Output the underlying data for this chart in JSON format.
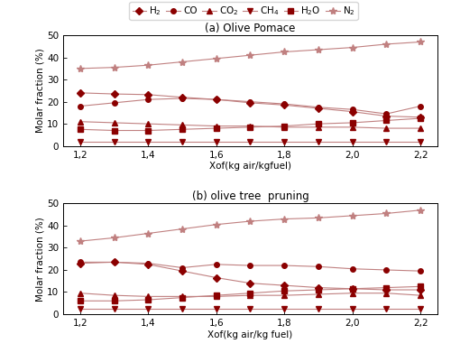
{
  "x": [
    1.2,
    1.3,
    1.4,
    1.5,
    1.6,
    1.7,
    1.8,
    1.9,
    2.0,
    2.1,
    2.2
  ],
  "panel_a": {
    "title": "(a) Olive Pomace",
    "H2": [
      24.0,
      23.5,
      23.2,
      22.0,
      21.0,
      19.5,
      18.5,
      17.0,
      15.5,
      13.5,
      13.0
    ],
    "CO": [
      18.0,
      19.5,
      21.0,
      21.5,
      21.0,
      20.0,
      19.0,
      17.5,
      16.5,
      14.5,
      18.0
    ],
    "CO2": [
      11.0,
      10.5,
      10.0,
      9.5,
      9.0,
      9.0,
      8.5,
      8.5,
      8.5,
      8.0,
      8.0
    ],
    "CH4": [
      2.0,
      2.0,
      2.0,
      2.0,
      2.0,
      2.0,
      2.0,
      2.0,
      2.0,
      2.0,
      2.0
    ],
    "H2O": [
      7.5,
      7.0,
      7.0,
      7.5,
      8.0,
      8.5,
      9.0,
      10.0,
      10.5,
      11.5,
      12.5
    ],
    "N2": [
      35.0,
      35.5,
      36.5,
      38.0,
      39.5,
      41.0,
      42.5,
      43.5,
      44.5,
      46.0,
      47.0
    ]
  },
  "panel_b": {
    "title": "(b) olive tree  pruning",
    "H2": [
      23.0,
      23.5,
      22.5,
      19.5,
      16.5,
      14.0,
      13.0,
      12.0,
      11.5,
      11.0,
      11.0
    ],
    "CO": [
      23.5,
      23.5,
      23.0,
      21.0,
      22.5,
      22.0,
      22.0,
      21.5,
      20.5,
      20.0,
      19.5
    ],
    "CO2": [
      9.5,
      8.5,
      8.0,
      8.0,
      8.0,
      8.5,
      8.5,
      9.0,
      9.5,
      9.5,
      8.5
    ],
    "CH4": [
      2.5,
      2.5,
      2.5,
      2.5,
      2.5,
      2.5,
      2.5,
      2.5,
      2.5,
      2.5,
      2.5
    ],
    "H2O": [
      6.0,
      6.0,
      6.5,
      7.5,
      8.5,
      9.5,
      10.5,
      11.0,
      11.5,
      12.0,
      12.5
    ],
    "N2": [
      33.0,
      34.5,
      36.5,
      38.5,
      40.5,
      42.0,
      43.0,
      43.5,
      44.5,
      45.5,
      47.0
    ]
  },
  "color_dark": "#8B0000",
  "color_light": "#C08080",
  "xlabel_a": "Xof(kg air/kgfuel)",
  "xlabel_b": "Xof(kg air/kg fuel)",
  "ylabel": "Molar fraction (%)",
  "ylim": [
    0,
    50
  ],
  "yticks": [
    0,
    10,
    20,
    30,
    40,
    50
  ],
  "xticks": [
    1.2,
    1.4,
    1.6,
    1.8,
    2.0,
    2.2
  ],
  "xticklabels": [
    "1,2",
    "1,4",
    "1,6",
    "1,8",
    "2,0",
    "2,2"
  ]
}
